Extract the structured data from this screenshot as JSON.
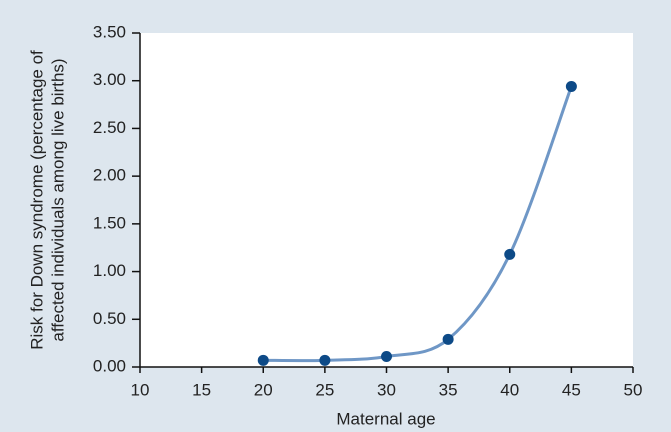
{
  "chart_data": {
    "type": "line",
    "xlabel": "Maternal age",
    "ylabel": [
      "Risk for Down syndrome (percentage of",
      "affected individuals among live births)"
    ],
    "x": [
      20,
      25,
      30,
      35,
      40,
      45
    ],
    "series": [
      {
        "line_color": "#6f97c6",
        "marker_color": "#0d4a87",
        "values": [
          0.07,
          0.07,
          0.11,
          0.29,
          1.18,
          2.94
        ]
      }
    ],
    "smooth": true,
    "xlim": [
      10,
      50
    ],
    "xticks": [
      10,
      15,
      20,
      25,
      30,
      35,
      40,
      45,
      50
    ],
    "ylim": [
      0,
      3.5
    ],
    "yticks": [
      {
        "value": 0,
        "label": "0.00"
      },
      {
        "value": 0.5,
        "label": "0.50"
      },
      {
        "value": 1,
        "label": "1.00"
      },
      {
        "value": 1.5,
        "label": "1.50"
      },
      {
        "value": 2,
        "label": "2.00"
      },
      {
        "value": 2.5,
        "label": "2.50"
      },
      {
        "value": 3,
        "label": "3.00"
      },
      {
        "value": 3.5,
        "label": "3.50"
      }
    ]
  }
}
